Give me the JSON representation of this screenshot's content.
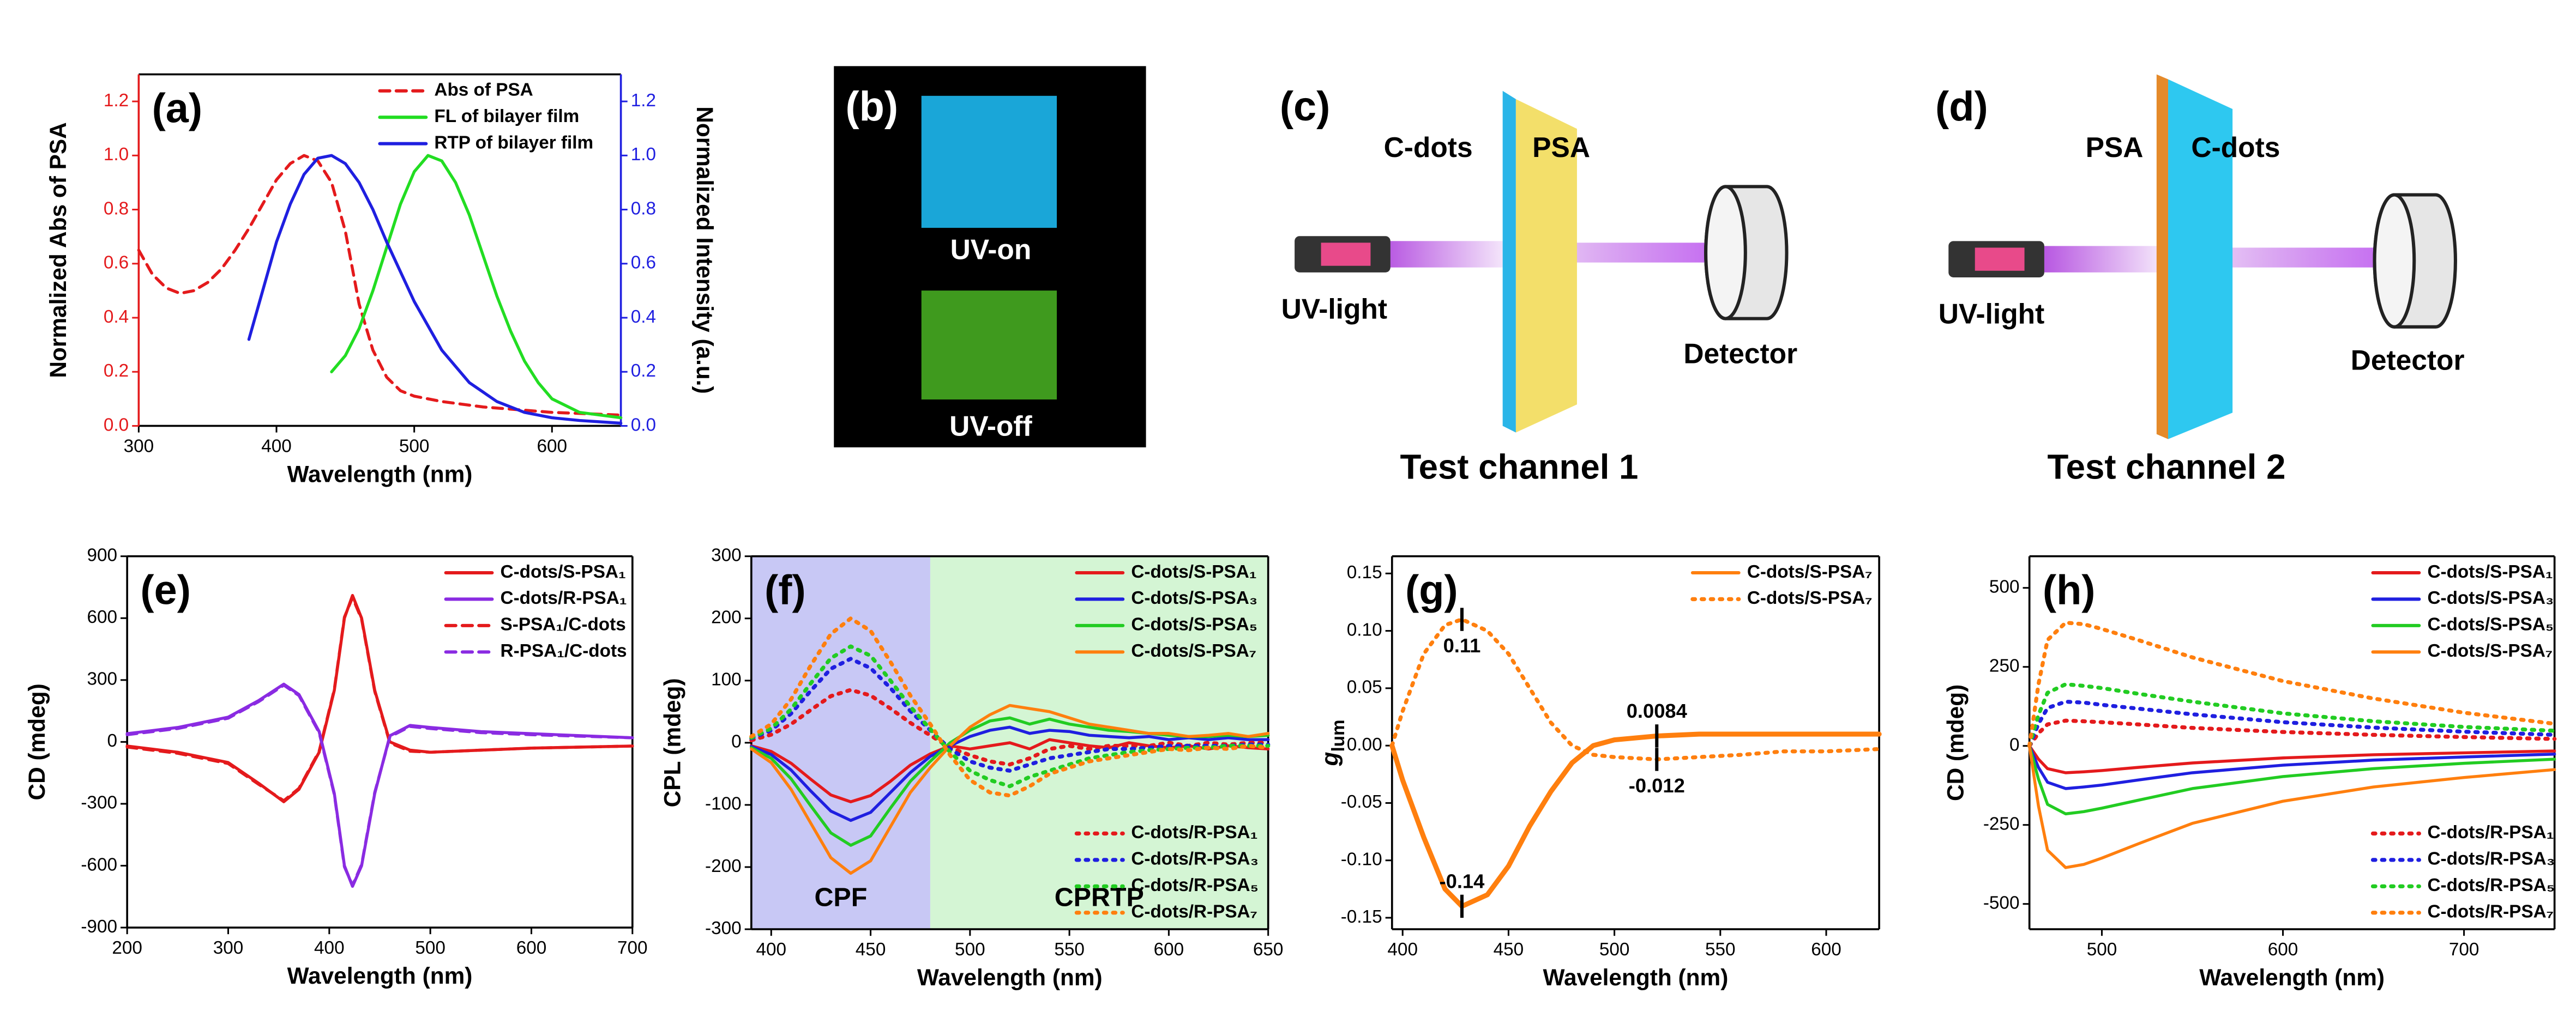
{
  "chart_data": [
    {
      "type": "line",
      "panel_label": "(a)",
      "x_label": "Wavelength (nm)",
      "y_label": "Normalized Abs of PSA",
      "y2_label": "Normalized Intensity (a.u.)",
      "xlim": [
        300,
        650
      ],
      "xticks": [
        300,
        400,
        500,
        600
      ],
      "ylim": [
        0,
        1.3
      ],
      "yticks": [
        {
          "value": 0,
          "label": "0.0"
        },
        0.2,
        0.4,
        0.6,
        0.8,
        {
          "value": 1,
          "label": "1.0"
        },
        1.2
      ],
      "y2lim": [
        0,
        1.3
      ],
      "y2ticks": [
        {
          "value": 0,
          "label": "0.0"
        },
        0.2,
        0.4,
        0.6,
        0.8,
        {
          "value": 1,
          "label": "1.0"
        },
        1.2
      ],
      "y_axis_color": "#e41a1c",
      "y2_axis_color": "#1f1fe0",
      "legend": "upper right",
      "grid": false,
      "series": [
        {
          "name": "Abs of PSA",
          "color": "#e41a1c",
          "dash": "dashed",
          "x": [
            300,
            310,
            320,
            330,
            340,
            350,
            360,
            370,
            380,
            390,
            400,
            410,
            420,
            430,
            440,
            450,
            460,
            470,
            480,
            490,
            500,
            520,
            550,
            600,
            650
          ],
          "values": [
            0.65,
            0.56,
            0.51,
            0.49,
            0.5,
            0.53,
            0.58,
            0.65,
            0.73,
            0.82,
            0.91,
            0.97,
            1.0,
            0.98,
            0.9,
            0.72,
            0.45,
            0.28,
            0.18,
            0.13,
            0.11,
            0.09,
            0.07,
            0.05,
            0.04
          ]
        },
        {
          "name": "FL of bilayer film",
          "color": "#22dd22",
          "dash": "solid",
          "axis": "y2",
          "x": [
            440,
            450,
            460,
            470,
            480,
            490,
            500,
            510,
            520,
            530,
            540,
            550,
            560,
            570,
            580,
            590,
            600,
            620,
            650
          ],
          "values": [
            0.2,
            0.26,
            0.36,
            0.5,
            0.66,
            0.82,
            0.94,
            1.0,
            0.98,
            0.9,
            0.78,
            0.63,
            0.48,
            0.35,
            0.24,
            0.16,
            0.1,
            0.05,
            0.03
          ]
        },
        {
          "name": "RTP of bilayer film",
          "color": "#1f1fe0",
          "dash": "solid",
          "axis": "y2",
          "x": [
            380,
            390,
            400,
            410,
            420,
            430,
            440,
            450,
            460,
            470,
            480,
            500,
            520,
            540,
            560,
            580,
            600,
            620,
            650
          ],
          "values": [
            0.32,
            0.5,
            0.68,
            0.82,
            0.93,
            0.99,
            1.0,
            0.97,
            0.9,
            0.8,
            0.68,
            0.46,
            0.28,
            0.16,
            0.09,
            0.05,
            0.03,
            0.02,
            0.01
          ]
        }
      ]
    },
    {
      "type": "line",
      "panel_label": "(e)",
      "x_label": "Wavelength (nm)",
      "y_label": "CD (mdeg)",
      "xlim": [
        200,
        700
      ],
      "xticks": [
        200,
        300,
        400,
        500,
        600,
        700
      ],
      "ylim": [
        -900,
        900
      ],
      "yticks": [
        -900,
        -600,
        -300,
        0,
        300,
        600,
        900
      ],
      "legend": "upper right",
      "grid": false,
      "x": [
        200,
        250,
        300,
        330,
        355,
        370,
        390,
        405,
        415,
        423,
        432,
        445,
        460,
        480,
        500,
        550,
        600,
        700
      ],
      "series": [
        {
          "name": "C-dots/S-PSA₁",
          "color": "#e41a1c",
          "dash": "solid",
          "values": [
            -20,
            -50,
            -100,
            -200,
            -290,
            -230,
            -50,
            250,
            600,
            710,
            600,
            250,
            0,
            -40,
            -50,
            -40,
            -30,
            -20
          ]
        },
        {
          "name": "C-dots/R-PSA₁",
          "color": "#8a2be2",
          "dash": "solid",
          "values": [
            40,
            70,
            120,
            200,
            280,
            230,
            50,
            -250,
            -600,
            -700,
            -600,
            -250,
            30,
            80,
            70,
            50,
            40,
            20
          ]
        },
        {
          "name": "S-PSA₁/C-dots",
          "color": "#e41a1c",
          "dash": "dashed",
          "values": [
            -25,
            -55,
            -105,
            -205,
            -285,
            -225,
            -45,
            255,
            605,
            700,
            595,
            245,
            -5,
            -45,
            -50,
            -40,
            -30,
            -20
          ]
        },
        {
          "name": "R-PSA₁/C-dots",
          "color": "#8a2be2",
          "dash": "dashed",
          "values": [
            35,
            65,
            115,
            195,
            275,
            225,
            45,
            -255,
            -605,
            -695,
            -595,
            -245,
            25,
            75,
            65,
            45,
            35,
            20
          ]
        }
      ]
    },
    {
      "type": "line",
      "panel_label": "(f)",
      "x_label": "Wavelength (nm)",
      "y_label": "CPL (mdeg)",
      "xlim": [
        390,
        650
      ],
      "xticks": [
        400,
        450,
        500,
        550,
        600,
        650
      ],
      "ylim": [
        -300,
        300
      ],
      "yticks": [
        -300,
        -200,
        -100,
        0,
        100,
        200,
        300
      ],
      "legend": "upper right",
      "legend_split": true,
      "grid": false,
      "regions": [
        {
          "label": "CPF",
          "from": 390,
          "to": 480,
          "color": "#c8c8f5"
        },
        {
          "label": "CPRTP",
          "from": 480,
          "to": 650,
          "color": "#d4f5d4"
        }
      ],
      "x": [
        390,
        400,
        410,
        420,
        430,
        440,
        450,
        460,
        470,
        480,
        490,
        500,
        510,
        520,
        530,
        540,
        550,
        560,
        570,
        580,
        590,
        600,
        610,
        620,
        630,
        640,
        650
      ],
      "series": [
        {
          "name": "C-dots/S-PSA₁",
          "color": "#e41a1c",
          "dash": "solid",
          "values": [
            -5,
            -14,
            -33,
            -59,
            -84,
            -95,
            -85,
            -62,
            -36,
            -18,
            -5,
            -10,
            -5,
            0,
            -10,
            5,
            0,
            -5,
            -8,
            0,
            -5,
            -8,
            -5,
            -10,
            -5,
            -8,
            -10
          ]
        },
        {
          "name": "C-dots/S-PSA₃",
          "color": "#1f1fe0",
          "dash": "solid",
          "values": [
            -6,
            -19,
            -44,
            -78,
            -110,
            -125,
            -112,
            -80,
            -48,
            -22,
            -5,
            10,
            20,
            25,
            15,
            20,
            18,
            12,
            10,
            8,
            10,
            5,
            8,
            5,
            8,
            5,
            5
          ]
        },
        {
          "name": "C-dots/S-PSA₅",
          "color": "#22cc22",
          "dash": "solid",
          "values": [
            -8,
            -25,
            -58,
            -102,
            -145,
            -165,
            -150,
            -105,
            -62,
            -30,
            0,
            20,
            35,
            40,
            30,
            38,
            30,
            25,
            20,
            18,
            15,
            12,
            10,
            10,
            12,
            10,
            12
          ]
        },
        {
          "name": "C-dots/S-PSA₇",
          "color": "#ff7f0e",
          "dash": "solid",
          "values": [
            -10,
            -32,
            -75,
            -130,
            -185,
            -210,
            -190,
            -135,
            -80,
            -40,
            -5,
            25,
            45,
            60,
            55,
            50,
            40,
            30,
            25,
            20,
            15,
            15,
            10,
            12,
            15,
            10,
            15
          ]
        },
        {
          "name": "C-dots/R-PSA₁",
          "color": "#e41a1c",
          "dash": "dotted",
          "values": [
            4,
            13,
            30,
            53,
            75,
            85,
            76,
            55,
            32,
            12,
            -8,
            -20,
            -30,
            -35,
            -25,
            -10,
            -5,
            -10,
            -5,
            -5,
            -5,
            0,
            -5,
            0,
            -3,
            0,
            0
          ]
        },
        {
          "name": "C-dots/R-PSA₃",
          "color": "#1f1fe0",
          "dash": "dotted",
          "values": [
            7,
            20,
            47,
            84,
            119,
            135,
            120,
            88,
            51,
            20,
            -10,
            -30,
            -40,
            -45,
            -35,
            -25,
            -20,
            -15,
            -10,
            -10,
            -8,
            -5,
            -5,
            -5,
            -5,
            -3,
            -3
          ]
        },
        {
          "name": "C-dots/R-PSA₅",
          "color": "#22cc22",
          "dash": "dotted",
          "values": [
            8,
            23,
            54,
            96,
            136,
            155,
            140,
            100,
            58,
            22,
            -15,
            -45,
            -60,
            -70,
            -55,
            -45,
            -35,
            -25,
            -20,
            -15,
            -12,
            -10,
            -8,
            -8,
            -5,
            -5,
            -5
          ]
        },
        {
          "name": "C-dots/R-PSA₇",
          "color": "#ff7f0e",
          "dash": "dotted",
          "values": [
            10,
            30,
            70,
            125,
            175,
            200,
            180,
            130,
            76,
            30,
            -20,
            -60,
            -80,
            -85,
            -70,
            -50,
            -40,
            -30,
            -25,
            -20,
            -15,
            -10,
            -12,
            -8,
            -10,
            -5,
            -8
          ]
        }
      ]
    },
    {
      "type": "line",
      "panel_label": "(g)",
      "x_label": "Wavelength (nm)",
      "y_label": "g",
      "y_label_sub": "lum",
      "xlim": [
        395,
        625
      ],
      "xticks": [
        400,
        450,
        500,
        550,
        600
      ],
      "ylim": [
        -0.16,
        0.165
      ],
      "yticks": [
        -0.15,
        {
          "value": -0.1,
          "label": "-0.10"
        },
        -0.05,
        {
          "value": 0,
          "label": "0.00"
        },
        0.05,
        {
          "value": 0.1,
          "label": "0.10"
        },
        0.15
      ],
      "legend": "upper right",
      "grid": false,
      "x": [
        395,
        400,
        410,
        420,
        428,
        440,
        450,
        460,
        470,
        480,
        490,
        500,
        520,
        540,
        560,
        580,
        600,
        625
      ],
      "series": [
        {
          "name": "C-dots/S-PSA₇",
          "color": "#ff7f0e",
          "dash": "solid",
          "label_position": "above",
          "values": [
            0,
            -0.03,
            -0.08,
            -0.125,
            -0.14,
            -0.13,
            -0.105,
            -0.07,
            -0.04,
            -0.015,
            0,
            0.005,
            0.0084,
            0.01,
            0.01,
            0.01,
            0.01,
            0.01
          ],
          "value_labels": [
            null,
            null,
            null,
            null,
            "-0.14",
            null,
            null,
            null,
            null,
            null,
            null,
            null,
            "0.0084",
            null,
            null,
            null,
            null,
            null
          ]
        },
        {
          "name": "C-dots/S-PSA₇",
          "color": "#ff7f0e",
          "dash": "dotted",
          "label_position": "below",
          "values": [
            0,
            0.03,
            0.08,
            0.105,
            0.11,
            0.1,
            0.08,
            0.05,
            0.02,
            0,
            -0.008,
            -0.01,
            -0.012,
            -0.01,
            -0.008,
            -0.005,
            -0.005,
            -0.003
          ],
          "value_labels": [
            null,
            null,
            null,
            null,
            "0.11",
            null,
            null,
            null,
            null,
            null,
            null,
            null,
            "-0.012",
            null,
            null,
            null,
            null,
            null
          ]
        }
      ]
    },
    {
      "type": "line",
      "panel_label": "(h)",
      "x_label": "Wavelength (nm)",
      "y_label": "CD (mdeg)",
      "xlim": [
        460,
        750
      ],
      "xticks": [
        500,
        600,
        700
      ],
      "ylim": [
        -580,
        600
      ],
      "yticks": [
        -500,
        -250,
        0,
        250,
        500
      ],
      "legend": "upper right",
      "legend_split": true,
      "grid": false,
      "x": [
        460,
        465,
        470,
        480,
        490,
        500,
        520,
        550,
        600,
        650,
        700,
        750
      ],
      "series": [
        {
          "name": "C-dots/S-PSA₁",
          "color": "#e41a1c",
          "dash": "solid",
          "values": [
            0,
            -42,
            -72,
            -85,
            -82,
            -78,
            -68,
            -54,
            -38,
            -28,
            -22,
            -16
          ]
        },
        {
          "name": "C-dots/S-PSA₃",
          "color": "#1f1fe0",
          "dash": "solid",
          "values": [
            0,
            -68,
            -115,
            -135,
            -130,
            -124,
            -108,
            -85,
            -61,
            -45,
            -35,
            -26
          ]
        },
        {
          "name": "C-dots/S-PSA₅",
          "color": "#22cc22",
          "dash": "solid",
          "values": [
            0,
            -105,
            -185,
            -215,
            -208,
            -197,
            -172,
            -135,
            -97,
            -72,
            -55,
            -42
          ]
        },
        {
          "name": "C-dots/S-PSA₇",
          "color": "#ff7f0e",
          "dash": "solid",
          "values": [
            0,
            -190,
            -330,
            -385,
            -375,
            -355,
            -310,
            -245,
            -175,
            -130,
            -100,
            -75
          ]
        },
        {
          "name": "C-dots/R-PSA₁",
          "color": "#e41a1c",
          "dash": "dotted",
          "values": [
            0,
            40,
            68,
            80,
            78,
            75,
            68,
            57,
            44,
            35,
            28,
            22
          ]
        },
        {
          "name": "C-dots/R-PSA₃",
          "color": "#1f1fe0",
          "dash": "dotted",
          "values": [
            0,
            70,
            120,
            140,
            137,
            130,
            118,
            100,
            75,
            58,
            45,
            35
          ]
        },
        {
          "name": "C-dots/R-PSA₅",
          "color": "#22cc22",
          "dash": "dotted",
          "values": [
            0,
            98,
            168,
            195,
            190,
            183,
            165,
            140,
            103,
            78,
            60,
            48
          ]
        },
        {
          "name": "C-dots/R-PSA₇",
          "color": "#ff7f0e",
          "dash": "dotted",
          "values": [
            0,
            195,
            335,
            390,
            385,
            370,
            335,
            280,
            205,
            150,
            105,
            70
          ]
        }
      ]
    }
  ],
  "panels": {
    "b": {
      "label": "(b)",
      "top": "UV-on",
      "bottom": "UV-off"
    },
    "c": {
      "label": "(c)",
      "left_layer": "C-dots",
      "right_layer": "PSA",
      "source": "UV-light",
      "detector": "Detector",
      "caption": "Test channel 1"
    },
    "d": {
      "label": "(d)",
      "left_layer": "PSA",
      "right_layer": "C-dots",
      "source": "UV-light",
      "detector": "Detector",
      "caption": "Test channel 2"
    }
  }
}
